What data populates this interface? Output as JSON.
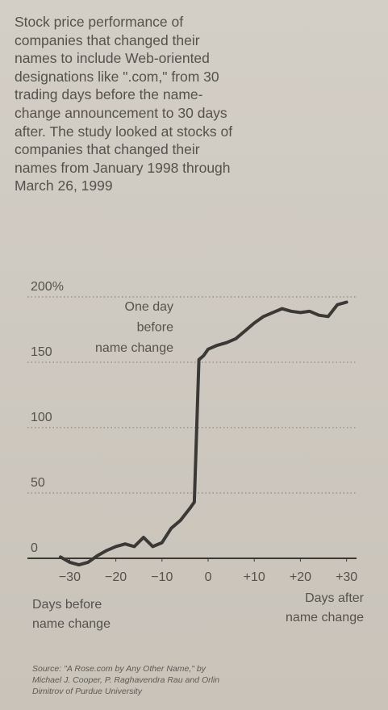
{
  "chart_data": {
    "type": "line",
    "description": [
      "Stock price performance of",
      "companies that changed their",
      "names to include Web-oriented",
      "designations like \".com,\" from 30",
      "trading days before the name-",
      "change announcement to 30 days",
      "after. The study looked at stocks of",
      "companies that changed their",
      "names from January 1998 through",
      "March 26, 1999"
    ],
    "annotation": [
      "One day",
      "before",
      "name change"
    ],
    "x_label_left": [
      "Days before",
      "name change"
    ],
    "x_label_right": [
      "Days after",
      "name change"
    ],
    "source": [
      "Source: \"A Rose.com by Any Other Name,\" by",
      "Michael J. Cooper, P. Raghavendra Rau and Orlin",
      "Dimitrov of Purdue University"
    ],
    "x": [
      -32,
      -30,
      -28,
      -26,
      -24,
      -22,
      -20,
      -18,
      -16,
      -14,
      -12,
      -10,
      -8,
      -6,
      -4,
      -3,
      -2,
      -1,
      0,
      2,
      4,
      6,
      8,
      10,
      12,
      14,
      16,
      18,
      20,
      22,
      24,
      26,
      28,
      30
    ],
    "series": [
      {
        "color": "#3b3936",
        "values": [
          1,
          -3,
          -5,
          -3,
          2,
          6,
          9,
          11,
          9,
          16,
          9,
          12,
          23,
          29,
          38,
          43,
          152,
          155,
          160,
          163,
          165,
          168,
          174,
          180,
          185,
          188,
          191,
          189,
          188,
          189,
          186,
          185,
          194,
          196
        ]
      }
    ],
    "xlim": [
      -35,
      33
    ],
    "ylim": [
      -10,
      205
    ],
    "xticks": [
      {
        "value": -30,
        "label": "−30"
      },
      {
        "value": -20,
        "label": "−20"
      },
      {
        "value": -10,
        "label": "−10"
      },
      0,
      {
        "value": 10,
        "label": "+10"
      },
      {
        "value": 20,
        "label": "+20"
      },
      {
        "value": 30,
        "label": "+30"
      }
    ],
    "yticks": [
      0,
      50,
      100,
      150,
      {
        "value": 200,
        "label": "200%"
      }
    ],
    "grid": true
  }
}
